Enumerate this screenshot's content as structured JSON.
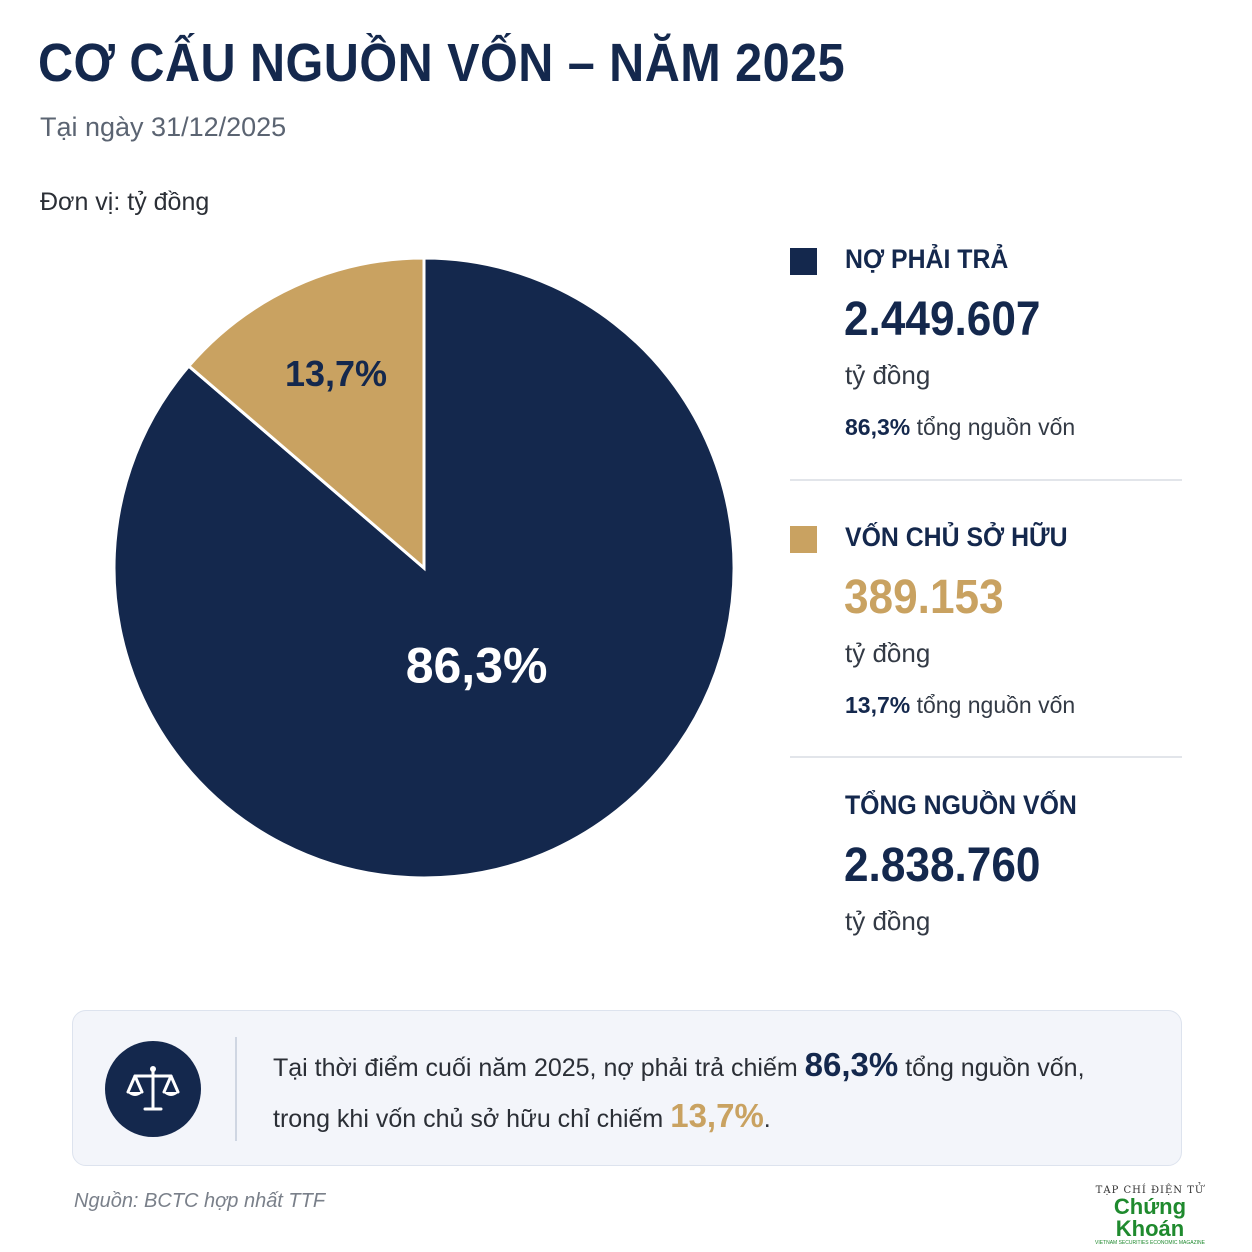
{
  "header": {
    "title": "CƠ CẤU NGUỒN VỐN – NĂM 2025",
    "subtitle": "Tại ngày 31/12/2025",
    "unit_label": "Đơn vị: tỷ đồng"
  },
  "chart_data": {
    "type": "pie",
    "title": "CƠ CẤU NGUỒN VỐN – NĂM 2025",
    "unit": "tỷ đồng",
    "slices": [
      {
        "name": "NỢ PHẢI TRẢ",
        "value": 2449607,
        "percent": 86.3,
        "label": "86,3%",
        "color": "#14284d",
        "label_color": "#ffffff"
      },
      {
        "name": "VỐN CHỦ SỞ HỮU",
        "value": 389153,
        "percent": 13.7,
        "label": "13,7%",
        "color": "#c9a261",
        "label_color": "#14284d"
      }
    ],
    "total": {
      "name": "TỔNG NGUỒN VỐN",
      "value": 2838760
    }
  },
  "legend": {
    "items": [
      {
        "name": "NỢ PHẢI TRẢ",
        "value": "2.449.607",
        "unit": "tỷ đồng",
        "share_pct": "86,3%",
        "share_text": "tổng nguồn vốn",
        "color": "#14284d",
        "value_color": "#14284d"
      },
      {
        "name": "VỐN CHỦ SỞ HỮU",
        "value": "389.153",
        "unit": "tỷ đồng",
        "share_pct": "13,7%",
        "share_text": "tổng nguồn vốn",
        "color": "#c9a261",
        "value_color": "#c9a261"
      }
    ],
    "total": {
      "name": "TỔNG NGUỒN VỐN",
      "value": "2.838.760",
      "unit": "tỷ đồng"
    }
  },
  "note": {
    "icon": "scale-icon",
    "part1": "Tại thời điểm cuối năm 2025, nợ phải trả chiếm",
    "pct1": "86,3%",
    "part2": "tổng nguồn vốn,",
    "part3": "trong khi vốn chủ sở hữu chỉ chiếm",
    "pct2": "13,7%",
    "part4": "."
  },
  "source": "Nguồn: BCTC hợp nhất TTF",
  "brand": {
    "top": "TẠP CHÍ ĐIỆN TỬ",
    "main": "Chứng Khoán",
    "sub": "VIETNAM SECURITIES ECONOMIC MAGAZINE"
  }
}
